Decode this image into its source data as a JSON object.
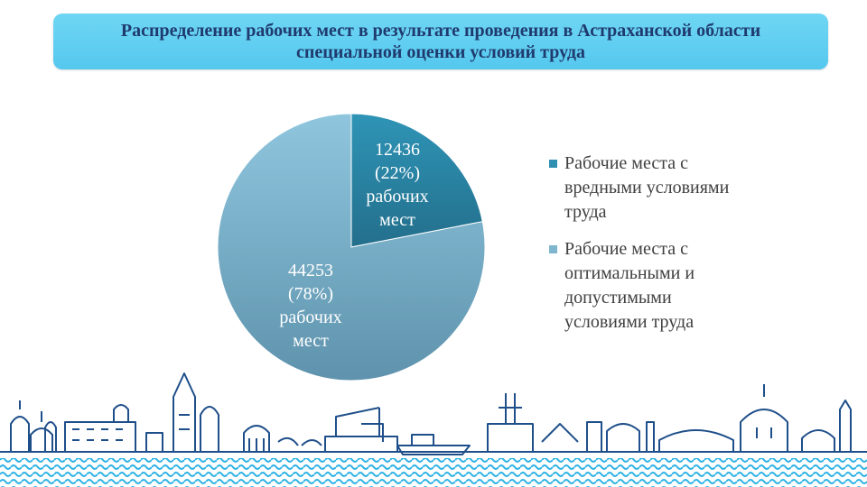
{
  "title": "Распределение рабочих мест в результате проведения в Астраханской области специальной оценки условий труда",
  "chart_data": {
    "type": "pie",
    "slices": [
      {
        "name": "Рабочие места с вредными условиями труда",
        "value": 12436,
        "percent": 22,
        "label_lines": [
          "12436",
          "(22%)",
          "рабочих",
          "мест"
        ],
        "color": "#2e8fb0"
      },
      {
        "name": "Рабочие места с оптимальными и допустимыми условиями труда",
        "value": 44253,
        "percent": 78,
        "label_lines": [
          "44253",
          "(78%)",
          "рабочих",
          "мест"
        ],
        "color": "#7fb5cf"
      }
    ],
    "legend_position": "right"
  },
  "legend": [
    {
      "label": "Рабочие места с вредными условиями труда",
      "color": "#2e8fb0"
    },
    {
      "label": "Рабочие места с оптимальными и допустимыми условиями труда",
      "color": "#7fb5cf"
    }
  ]
}
